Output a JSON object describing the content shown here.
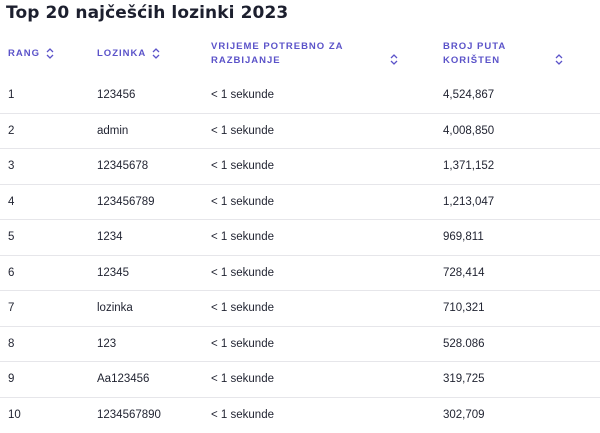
{
  "title": "Top 20 najčešćih lozinki 2023",
  "columns": {
    "rank": "RANG",
    "password": "LOZINKA",
    "time_line1": "VRIJEME POTREBNO ZA",
    "time_line2": "RAZBIJANJE",
    "count_line1": "BROJ PUTA",
    "count_line2": "KORIŠTEN"
  },
  "icons": {
    "sort": "sort-chevrons-icon"
  },
  "colors": {
    "header_accent": "#5b53c9",
    "divider": "#e6e6ea"
  },
  "rows": [
    {
      "rank": "1",
      "password": "123456",
      "time": "< 1 sekunde",
      "count": "4,524,867"
    },
    {
      "rank": "2",
      "password": "admin",
      "time": "< 1 sekunde",
      "count": "4,008,850"
    },
    {
      "rank": "3",
      "password": "12345678",
      "time": "< 1 sekunde",
      "count": "1,371,152"
    },
    {
      "rank": "4",
      "password": "123456789",
      "time": "< 1 sekunde",
      "count": "1,213,047"
    },
    {
      "rank": "5",
      "password": "1234",
      "time": "< 1 sekunde",
      "count": "969,811"
    },
    {
      "rank": "6",
      "password": "12345",
      "time": "< 1 sekunde",
      "count": "728,414"
    },
    {
      "rank": "7",
      "password": "lozinka",
      "time": "< 1 sekunde",
      "count": "710,321"
    },
    {
      "rank": "8",
      "password": "123",
      "time": "< 1 sekunde",
      "count": "528.086"
    },
    {
      "rank": "9",
      "password": "Aa123456",
      "time": "< 1 sekunde",
      "count": "319,725"
    },
    {
      "rank": "10",
      "password": "1234567890",
      "time": "< 1 sekunde",
      "count": "302,709"
    }
  ]
}
